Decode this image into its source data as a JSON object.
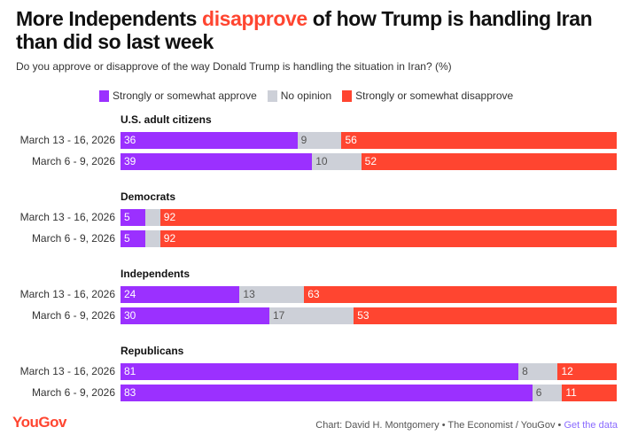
{
  "header": {
    "title_pre": "More Independents ",
    "title_highlight": "disapprove",
    "title_post": " of how Trump is handling Iran than did so last week",
    "subtitle": "Do you approve or disapprove of the way Donald Trump is handling the situation in Iran? (%)"
  },
  "colors": {
    "approve": "#9b30ff",
    "noop": "#cdd0d8",
    "disapprove": "#ff4530",
    "highlight": "#ff4530",
    "link": "#8a6bff"
  },
  "chart_data": {
    "type": "bar",
    "stacked": true,
    "orientation": "horizontal",
    "title": "More Independents disapprove of how Trump is handling Iran than did so last week",
    "subtitle": "Do you approve or disapprove of the way Donald Trump is handling the situation in Iran? (%)",
    "legend": [
      "Strongly or somewhat approve",
      "No opinion",
      "Strongly or somewhat disapprove"
    ],
    "legend_placement": "top",
    "groups": [
      {
        "name": "U.S. adult citizens",
        "rows": [
          {
            "label": "March 13 - 16, 2026",
            "values": [
              36,
              9,
              56
            ],
            "shown": [
              true,
              true,
              true
            ]
          },
          {
            "label": "March 6 - 9, 2026",
            "values": [
              39,
              10,
              52
            ],
            "shown": [
              true,
              true,
              true
            ]
          }
        ]
      },
      {
        "name": "Democrats",
        "rows": [
          {
            "label": "March 13 - 16, 2026",
            "values": [
              5,
              3,
              92
            ],
            "shown": [
              true,
              false,
              true
            ]
          },
          {
            "label": "March 6 - 9, 2026",
            "values": [
              5,
              3,
              92
            ],
            "shown": [
              true,
              false,
              true
            ]
          }
        ]
      },
      {
        "name": "Independents",
        "rows": [
          {
            "label": "March 13 - 16, 2026",
            "values": [
              24,
              13,
              63
            ],
            "shown": [
              true,
              true,
              true
            ]
          },
          {
            "label": "March 6 - 9, 2026",
            "values": [
              30,
              17,
              53
            ],
            "shown": [
              true,
              true,
              true
            ]
          }
        ]
      },
      {
        "name": "Republicans",
        "rows": [
          {
            "label": "March 13 - 16, 2026",
            "values": [
              81,
              8,
              12
            ],
            "shown": [
              true,
              true,
              true
            ]
          },
          {
            "label": "March 6 - 9, 2026",
            "values": [
              83,
              6,
              11
            ],
            "shown": [
              true,
              true,
              true
            ]
          }
        ]
      }
    ]
  },
  "footer": {
    "logo": "YouGov",
    "credit": "Chart: David H. Montgomery • The Economist / YouGov • ",
    "link": "Get the data"
  }
}
